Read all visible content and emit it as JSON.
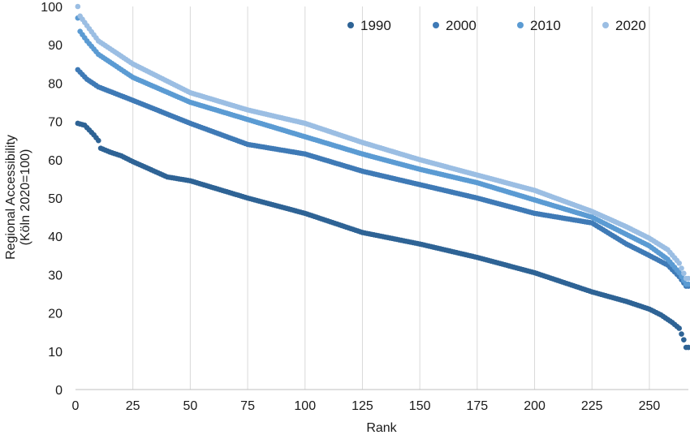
{
  "chart_data": {
    "type": "scatter",
    "title": "",
    "xlabel": "Rank",
    "ylabel_lines": [
      "Regional Accessibility",
      "(Köln 2020=100)"
    ],
    "xlim": [
      0,
      267
    ],
    "ylim": [
      0,
      100
    ],
    "x_ticks": [
      0,
      25,
      50,
      75,
      100,
      125,
      150,
      175,
      200,
      225,
      250
    ],
    "y_ticks": [
      0,
      10,
      20,
      30,
      40,
      50,
      60,
      70,
      80,
      90,
      100
    ],
    "grid": "vertical",
    "legend_position": "top-right",
    "n_points": 267,
    "series": [
      {
        "name": "1990",
        "color": "#2e6395",
        "anchors": [
          [
            1,
            69.5
          ],
          [
            4,
            69
          ],
          [
            8,
            66.5
          ],
          [
            10,
            65
          ],
          [
            11,
            63
          ],
          [
            15,
            62
          ],
          [
            20,
            61
          ],
          [
            25,
            59.5
          ],
          [
            40,
            55.5
          ],
          [
            50,
            54.5
          ],
          [
            75,
            50
          ],
          [
            100,
            46
          ],
          [
            125,
            41
          ],
          [
            150,
            38
          ],
          [
            175,
            34.5
          ],
          [
            200,
            30.5
          ],
          [
            225,
            25.5
          ],
          [
            240,
            23
          ],
          [
            250,
            21
          ],
          [
            255,
            19.5
          ],
          [
            260,
            17.5
          ],
          [
            263,
            16
          ],
          [
            265,
            13
          ],
          [
            266,
            11
          ]
        ]
      },
      {
        "name": "2000",
        "color": "#3f7ab6",
        "anchors": [
          [
            1,
            83.5
          ],
          [
            5,
            81
          ],
          [
            10,
            79
          ],
          [
            25,
            75.5
          ],
          [
            50,
            69.5
          ],
          [
            75,
            64
          ],
          [
            100,
            61.5
          ],
          [
            125,
            57
          ],
          [
            150,
            53.5
          ],
          [
            175,
            50
          ],
          [
            200,
            46
          ],
          [
            225,
            43.5
          ],
          [
            240,
            38
          ],
          [
            250,
            35
          ],
          [
            258,
            32.5
          ],
          [
            263,
            29.5
          ],
          [
            266,
            27
          ]
        ]
      },
      {
        "name": "2010",
        "color": "#5b9bd3",
        "anchors": [
          [
            1,
            97
          ],
          [
            2,
            93.5
          ],
          [
            5,
            91
          ],
          [
            10,
            87.5
          ],
          [
            25,
            81.5
          ],
          [
            50,
            75
          ],
          [
            75,
            70.5
          ],
          [
            100,
            66
          ],
          [
            125,
            61.5
          ],
          [
            150,
            57.5
          ],
          [
            175,
            54
          ],
          [
            200,
            49.5
          ],
          [
            225,
            45
          ],
          [
            240,
            40.5
          ],
          [
            250,
            37.5
          ],
          [
            258,
            34
          ],
          [
            263,
            30.5
          ],
          [
            266,
            27.5
          ]
        ]
      },
      {
        "name": "2020",
        "color": "#9bbee3",
        "anchors": [
          [
            1,
            100
          ],
          [
            2,
            97.5
          ],
          [
            5,
            95
          ],
          [
            10,
            91
          ],
          [
            25,
            85
          ],
          [
            50,
            77.5
          ],
          [
            75,
            73
          ],
          [
            100,
            69.5
          ],
          [
            125,
            64.5
          ],
          [
            150,
            60
          ],
          [
            175,
            56
          ],
          [
            200,
            52
          ],
          [
            225,
            46.5
          ],
          [
            240,
            42.5
          ],
          [
            250,
            39.5
          ],
          [
            258,
            36.5
          ],
          [
            263,
            33
          ],
          [
            266,
            29
          ]
        ]
      }
    ]
  }
}
